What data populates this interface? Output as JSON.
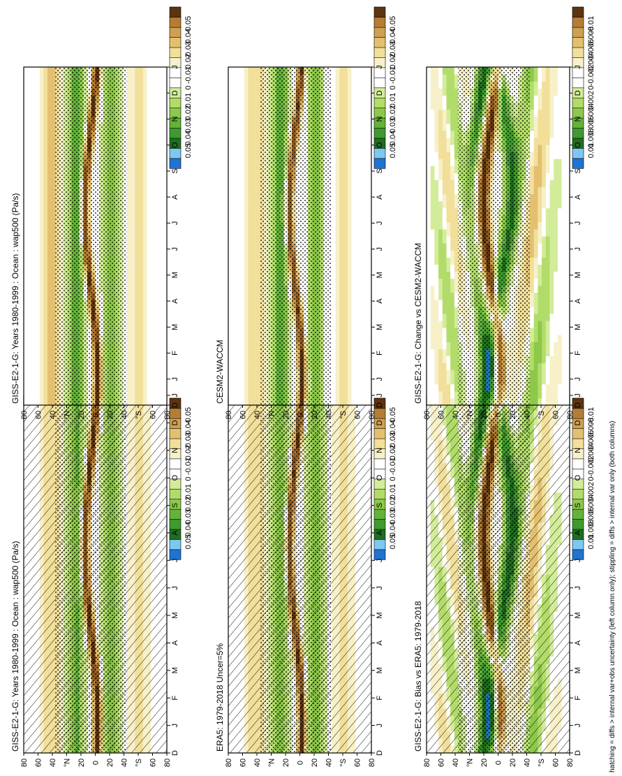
{
  "figure": {
    "footnote": "hatching = diffs > internal var+obs uncertainty (left column only); stippling = diffs > internal var only (both columns)"
  },
  "chart_data": [
    {
      "type": "heatmap",
      "title": "GISS-E2-1-G: Years 1980-1999 : Ocean : wap500 (Pa/s)",
      "x_ticks": [
        "D",
        "J",
        "F",
        "M",
        "A",
        "M",
        "J",
        "J",
        "A",
        "S",
        "O",
        "N",
        "D",
        "J"
      ],
      "y_ticks": [
        "80",
        "60",
        "40",
        "°N",
        "20",
        "0",
        "20",
        "40",
        "°S",
        "60",
        "80"
      ],
      "colorbar": [
        "0.05",
        "0.04",
        "0.03",
        "0.02",
        "0.01",
        "0",
        "-0.01",
        "-0.02",
        "-0.03",
        "-0.04",
        "-0.05"
      ],
      "hatching": true,
      "stippling": true
    },
    {
      "type": "heatmap",
      "title": "GISS-E2-1-G: Years 1980-1999 : Ocean : wap500 (Pa/s)",
      "x_ticks": [
        "D",
        "J",
        "F",
        "M",
        "A",
        "M",
        "J",
        "J",
        "A",
        "S",
        "O",
        "N",
        "D",
        "J"
      ],
      "y_ticks": [
        "80",
        "60",
        "40",
        "°N",
        "20",
        "0",
        "20",
        "40",
        "°S",
        "60",
        "80"
      ],
      "colorbar": [
        "0.05",
        "0.04",
        "0.03",
        "0.02",
        "0.01",
        "0",
        "-0.01",
        "-0.02",
        "-0.03",
        "-0.04",
        "-0.05"
      ],
      "hatching": false,
      "stippling": true
    },
    {
      "type": "heatmap",
      "title": "ERA5: 1979-2018 Uncer=5%",
      "x_ticks": [
        "D",
        "J",
        "F",
        "M",
        "A",
        "M",
        "J",
        "J",
        "A",
        "S",
        "O",
        "N",
        "D",
        "J"
      ],
      "y_ticks": [
        "80",
        "60",
        "40",
        "°N",
        "20",
        "0",
        "20",
        "40",
        "°S",
        "60",
        "80"
      ],
      "colorbar": [
        "0.05",
        "0.04",
        "0.03",
        "0.02",
        "0.01",
        "0",
        "-0.01",
        "-0.02",
        "-0.03",
        "-0.04",
        "-0.05"
      ],
      "hatching": true,
      "stippling": true
    },
    {
      "type": "heatmap",
      "title": "CESM2-WACCM",
      "x_ticks": [
        "D",
        "J",
        "F",
        "M",
        "A",
        "M",
        "J",
        "J",
        "A",
        "S",
        "O",
        "N",
        "D",
        "J"
      ],
      "y_ticks": [
        "80",
        "60",
        "40",
        "°N",
        "20",
        "0",
        "20",
        "40",
        "°S",
        "60",
        "80"
      ],
      "colorbar": [
        "0.05",
        "0.04",
        "0.03",
        "0.02",
        "0.01",
        "0",
        "-0.01",
        "-0.02",
        "-0.03",
        "-0.04",
        "-0.05"
      ],
      "hatching": false,
      "stippling": true
    },
    {
      "type": "heatmap",
      "title": "GISS-E2-1-G: Bias vs ERA5: 1979-2018",
      "x_ticks": [
        "D",
        "J",
        "F",
        "M",
        "A",
        "M",
        "J",
        "J",
        "A",
        "S",
        "O",
        "N",
        "D",
        "J"
      ],
      "y_ticks": [
        "80",
        "60",
        "40",
        "°N",
        "20",
        "0",
        "20",
        "40",
        "°S",
        "60",
        "80"
      ],
      "colorbar": [
        "0.01",
        "0.008",
        "0.006",
        "0.004",
        "0.002",
        "0",
        "-0.002",
        "-0.004",
        "-0.006",
        "-0.008",
        "-0.01"
      ],
      "hatching": true,
      "stippling": true
    },
    {
      "type": "heatmap",
      "title": "GISS-E2-1-G: Change vs CESM2-WACCM",
      "x_ticks": [
        "D",
        "J",
        "F",
        "M",
        "A",
        "M",
        "J",
        "J",
        "A",
        "S",
        "O",
        "N",
        "D",
        "J"
      ],
      "y_ticks": [
        "80",
        "60",
        "40",
        "°N",
        "20",
        "0",
        "20",
        "40",
        "°S",
        "60",
        "80"
      ],
      "colorbar": [
        "0.01",
        "0.008",
        "0.006",
        "0.004",
        "0.002",
        "0",
        "-0.002",
        "-0.004",
        "-0.006",
        "-0.008",
        "-0.01"
      ],
      "hatching": false,
      "stippling": true
    }
  ],
  "colors": {
    "scale": [
      "#1e74d0",
      "#7ec8f0",
      "#1f6e1f",
      "#3f9a2f",
      "#63b23a",
      "#8cc84a",
      "#b2dc6a",
      "#d3ec9a",
      "#ffffff",
      "#f7f0c8",
      "#f1df9a",
      "#e3c070",
      "#cfa052",
      "#b57c34",
      "#8f5a20",
      "#5c3410"
    ],
    "axis": "#000000"
  }
}
